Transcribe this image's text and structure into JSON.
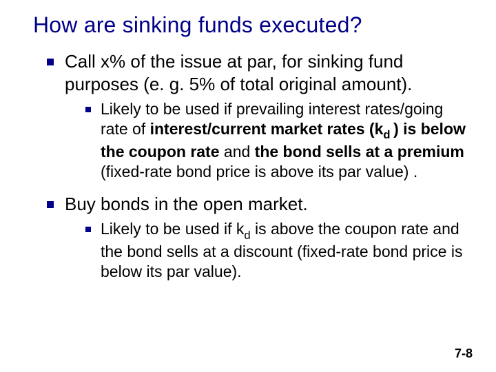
{
  "colors": {
    "title": "#000088",
    "bullet": "#000088",
    "text": "#000000",
    "background": "#ffffff"
  },
  "typography": {
    "title_fontsize_pt": 24,
    "l1_fontsize_pt": 20,
    "l2_fontsize_pt": 17,
    "pagenum_fontsize_pt": 13,
    "font_family": "Arial"
  },
  "title": "How are sinking funds executed?",
  "items": [
    {
      "text_plain": "Call x% of the issue at par, for sinking fund purposes (e. g. 5% of total original amount).",
      "sub": [
        {
          "runs": [
            {
              "t": "Likely to be used if prevailing interest rates/going rate of ",
              "b": false
            },
            {
              "t": "interest/current market rates (k",
              "b": true
            },
            {
              "t": "d ",
              "b": true,
              "sub": true
            },
            {
              "t": ") is below the coupon rate ",
              "b": true
            },
            {
              "t": "and ",
              "b": false
            },
            {
              "t": "the bond sells at a premium ",
              "b": true
            },
            {
              "t": "(fixed-rate bond price is above its par value) .",
              "b": false
            }
          ]
        }
      ]
    },
    {
      "text_plain": "Buy bonds in the open market.",
      "sub": [
        {
          "runs": [
            {
              "t": "Likely to be used if k",
              "b": false
            },
            {
              "t": "d",
              "b": false,
              "sub": true
            },
            {
              "t": " is above the coupon rate and the bond sells at a discount (fixed-rate bond price is below its par value).",
              "b": false
            }
          ]
        }
      ]
    }
  ],
  "page_number": "7-8"
}
